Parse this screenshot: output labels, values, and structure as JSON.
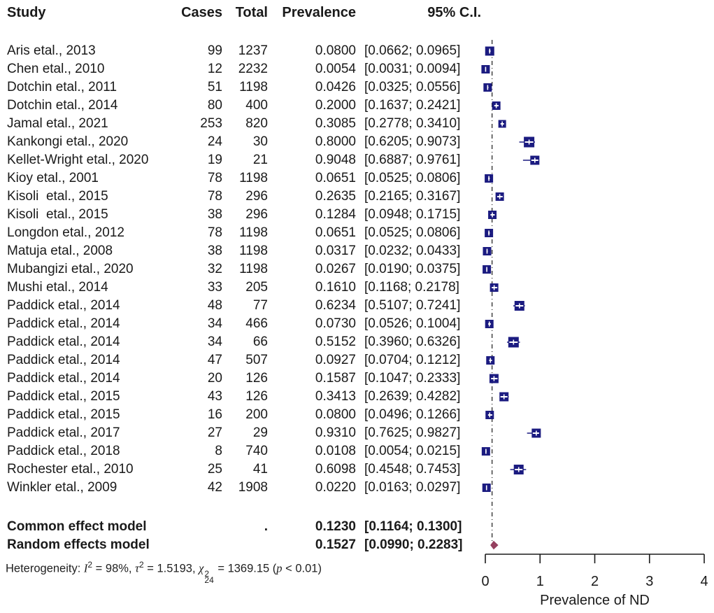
{
  "header": {
    "study": "Study",
    "cases": "Cases",
    "total": "Total",
    "prevalence": "Prevalence",
    "ci": "95% C.I."
  },
  "heterogeneity": {
    "prefix": "Heterogeneity: ",
    "i2_sym": "I",
    "i2_sup": "2",
    "i2_rest": " = 98%, ",
    "tau_sym": "τ",
    "tau_sup": "2",
    "tau_rest": " = 1.5193, ",
    "chi_sym": "χ",
    "chi_sup": "2",
    "chi_sub": "24",
    "chi_rest": " = 1369.15 (",
    "p_sym": "p",
    "p_rest": " < 0.01)"
  },
  "colors": {
    "marker": "#1b1b80",
    "diamond": "#95405f",
    "text": "#1a1a1a",
    "axis": "#1a1a1a",
    "ref_line": "#2a2a2a",
    "ci_inner": "#ffffff"
  },
  "chart_data": {
    "type": "scatter",
    "variant": "forest_plot_meta_analysis",
    "title": "",
    "xlabel": "Prevalence of ND",
    "xlim": [
      0,
      4
    ],
    "xticks": [
      0,
      1,
      2,
      3,
      4
    ],
    "reference_line_x": 0.123,
    "studies": [
      {
        "name": "Aris etal., 2013",
        "cases": 99,
        "total": 1237,
        "est": 0.08,
        "lo": 0.0662,
        "hi": 0.0965,
        "size": 13
      },
      {
        "name": "Chen etal., 2010",
        "cases": 12,
        "total": 2232,
        "est": 0.0054,
        "lo": 0.0031,
        "hi": 0.0094,
        "size": 12
      },
      {
        "name": "Dotchin etal., 2011",
        "cases": 51,
        "total": 1198,
        "est": 0.0426,
        "lo": 0.0325,
        "hi": 0.0556,
        "size": 12
      },
      {
        "name": "Dotchin etal., 2014",
        "cases": 80,
        "total": 400,
        "est": 0.2,
        "lo": 0.1637,
        "hi": 0.2421,
        "size": 12
      },
      {
        "name": "Jamal etal., 2021",
        "cases": 253,
        "total": 820,
        "est": 0.3085,
        "lo": 0.2778,
        "hi": 0.341,
        "size": 11
      },
      {
        "name": "Kankongi etal., 2020",
        "cases": 24,
        "total": 30,
        "est": 0.8,
        "lo": 0.6205,
        "hi": 0.9073,
        "size": 15
      },
      {
        "name": "Kellet-Wright etal., 2020",
        "cases": 19,
        "total": 21,
        "est": 0.9048,
        "lo": 0.6887,
        "hi": 0.9761,
        "size": 13
      },
      {
        "name": "Kioy etal., 2001",
        "cases": 78,
        "total": 1198,
        "est": 0.0651,
        "lo": 0.0525,
        "hi": 0.0806,
        "size": 12
      },
      {
        "name": "Kisoli  etal., 2015",
        "cases": 78,
        "total": 296,
        "est": 0.2635,
        "lo": 0.2165,
        "hi": 0.3167,
        "size": 12
      },
      {
        "name": "Kisoli  etal., 2015",
        "cases": 38,
        "total": 296,
        "est": 0.1284,
        "lo": 0.0948,
        "hi": 0.1715,
        "size": 12
      },
      {
        "name": "Longdon etal., 2012",
        "cases": 78,
        "total": 1198,
        "est": 0.0651,
        "lo": 0.0525,
        "hi": 0.0806,
        "size": 12
      },
      {
        "name": "Matuja etal., 2008",
        "cases": 38,
        "total": 1198,
        "est": 0.0317,
        "lo": 0.0232,
        "hi": 0.0433,
        "size": 12
      },
      {
        "name": "Mubangizi etal., 2020",
        "cases": 32,
        "total": 1198,
        "est": 0.0267,
        "lo": 0.019,
        "hi": 0.0375,
        "size": 12
      },
      {
        "name": "Mushi etal., 2014",
        "cases": 33,
        "total": 205,
        "est": 0.161,
        "lo": 0.1168,
        "hi": 0.2178,
        "size": 12
      },
      {
        "name": "Paddick etal., 2014",
        "cases": 48,
        "total": 77,
        "est": 0.6234,
        "lo": 0.5107,
        "hi": 0.7241,
        "size": 14
      },
      {
        "name": "Paddick etal., 2014",
        "cases": 34,
        "total": 466,
        "est": 0.073,
        "lo": 0.0526,
        "hi": 0.1004,
        "size": 12
      },
      {
        "name": "Paddick etal., 2014",
        "cases": 34,
        "total": 66,
        "est": 0.5152,
        "lo": 0.396,
        "hi": 0.6326,
        "size": 15
      },
      {
        "name": "Paddick etal., 2014",
        "cases": 47,
        "total": 507,
        "est": 0.0927,
        "lo": 0.0704,
        "hi": 0.1212,
        "size": 12
      },
      {
        "name": "Paddick etal., 2014",
        "cases": 20,
        "total": 126,
        "est": 0.1587,
        "lo": 0.1047,
        "hi": 0.2333,
        "size": 13
      },
      {
        "name": "Paddick etal., 2015",
        "cases": 43,
        "total": 126,
        "est": 0.3413,
        "lo": 0.2639,
        "hi": 0.4282,
        "size": 13
      },
      {
        "name": "Paddick etal., 2015",
        "cases": 16,
        "total": 200,
        "est": 0.08,
        "lo": 0.0496,
        "hi": 0.1266,
        "size": 12
      },
      {
        "name": "Paddick etal., 2017",
        "cases": 27,
        "total": 29,
        "est": 0.931,
        "lo": 0.7625,
        "hi": 0.9827,
        "size": 13
      },
      {
        "name": "Paddick etal., 2018",
        "cases": 8,
        "total": 740,
        "est": 0.0108,
        "lo": 0.0054,
        "hi": 0.0215,
        "size": 12
      },
      {
        "name": "Rochester etal., 2010",
        "cases": 25,
        "total": 41,
        "est": 0.6098,
        "lo": 0.4548,
        "hi": 0.7453,
        "size": 14
      },
      {
        "name": "Winkler etal., 2009",
        "cases": 42,
        "total": 1908,
        "est": 0.022,
        "lo": 0.0163,
        "hi": 0.0297,
        "size": 12
      }
    ],
    "summaries": [
      {
        "name": "Common effect model",
        "total_label": ".",
        "est": 0.123,
        "lo": 0.1164,
        "hi": 0.13,
        "marker": "none"
      },
      {
        "name": "Random effects model",
        "total_label": "",
        "est": 0.1527,
        "lo": 0.099,
        "hi": 0.2283,
        "marker": "diamond"
      }
    ]
  }
}
